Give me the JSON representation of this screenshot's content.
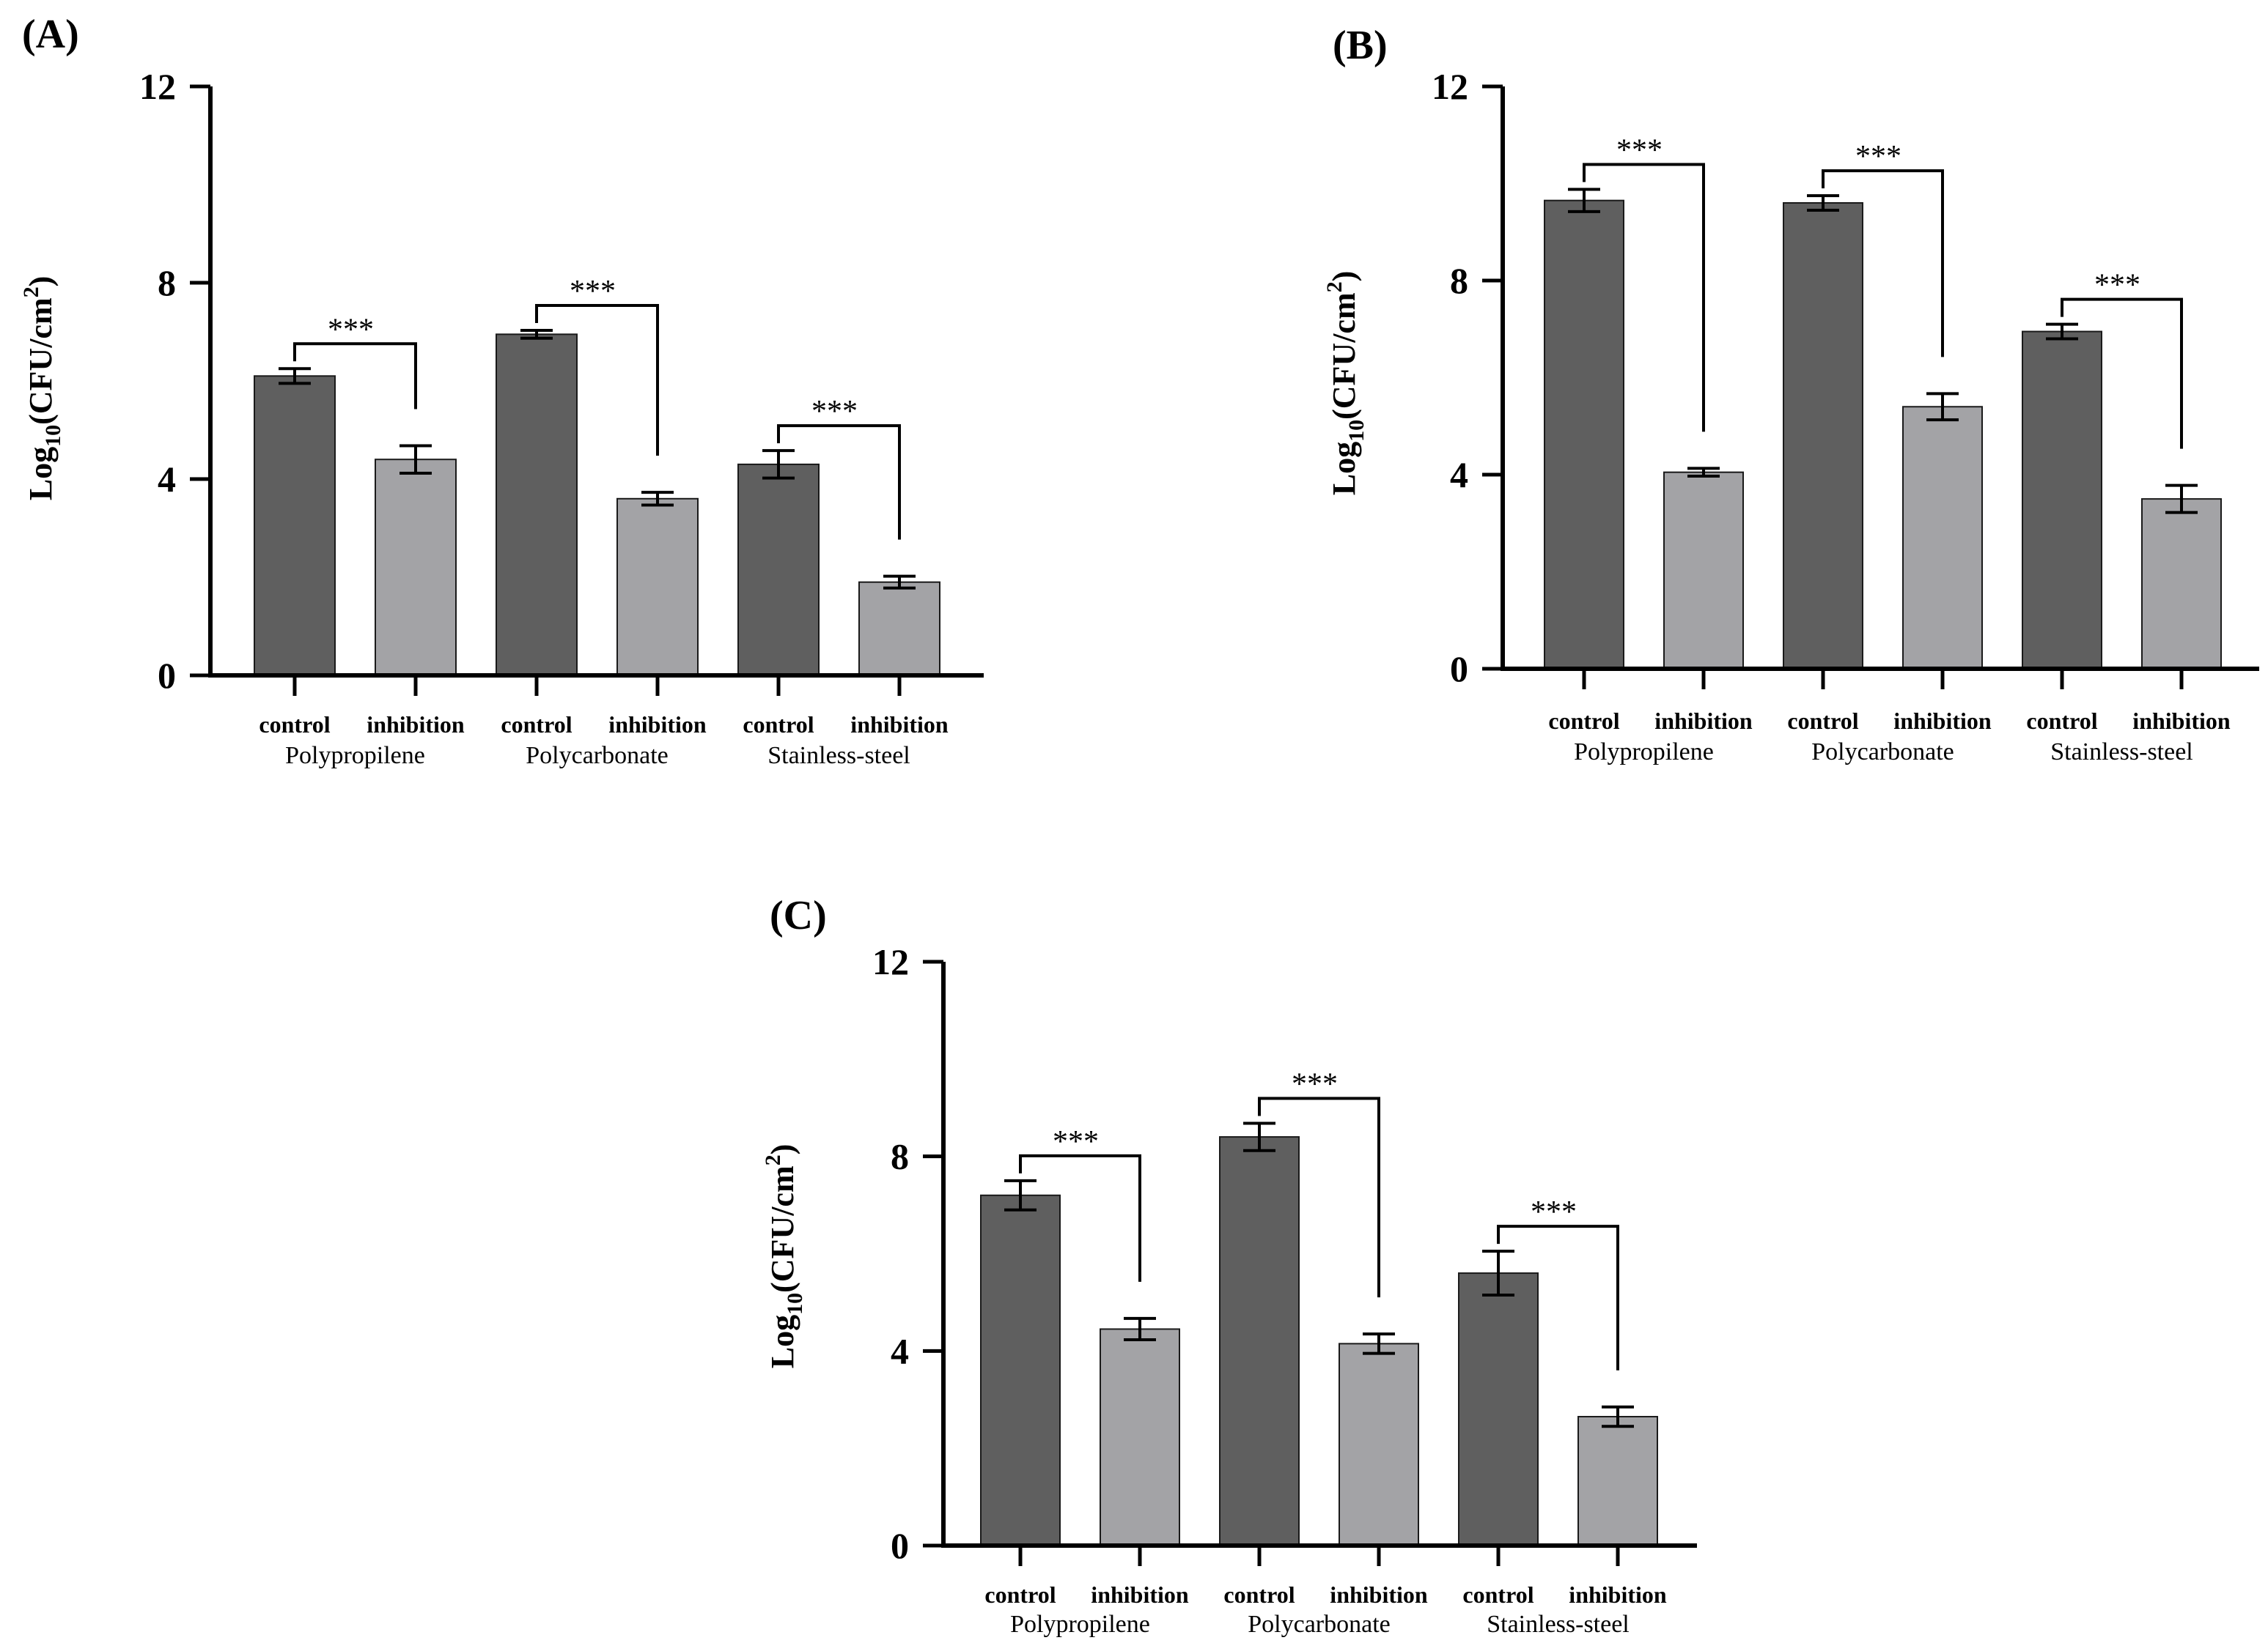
{
  "chart_data": [
    {
      "type": "bar",
      "panel": "(A)",
      "ylabel": {
        "prefix": "Log",
        "sub": "10",
        "mid": "(CFU/cm",
        "sup": "2",
        "suffix": ")"
      },
      "ylim": [
        0,
        12
      ],
      "yticks": [
        "0",
        "4",
        "8",
        "12"
      ],
      "groups": [
        "Polypropilene",
        "Polycarbonate",
        "Stainless-steel"
      ],
      "categories": [
        "control",
        "inhibition",
        "control",
        "inhibition",
        "control",
        "inhibition"
      ],
      "values": [
        6.1,
        4.4,
        6.95,
        3.6,
        4.3,
        1.9
      ],
      "errors": [
        0.15,
        0.28,
        0.08,
        0.13,
        0.28,
        0.12
      ],
      "significance": [
        "***",
        "***",
        "***"
      ]
    },
    {
      "type": "bar",
      "panel": "(B)",
      "ylabel": {
        "prefix": "Log",
        "sub": "10",
        "mid": "(CFU/cm",
        "sup": "2",
        "suffix": ")"
      },
      "ylim": [
        0,
        12
      ],
      "yticks": [
        "0",
        "4",
        "8",
        "12"
      ],
      "groups": [
        "Polypropilene",
        "Polycarbonate",
        "Stainless-steel"
      ],
      "categories": [
        "control",
        "inhibition",
        "control",
        "inhibition",
        "control",
        "inhibition"
      ],
      "values": [
        9.65,
        4.05,
        9.6,
        5.4,
        6.95,
        3.5
      ],
      "errors": [
        0.23,
        0.08,
        0.15,
        0.27,
        0.15,
        0.28
      ],
      "significance": [
        "***",
        "***",
        "***"
      ]
    },
    {
      "type": "bar",
      "panel": "(C)",
      "ylabel": {
        "prefix": "Log",
        "sub": "10",
        "mid": "(CFU/cm",
        "sup": "2",
        "suffix": ")"
      },
      "ylim": [
        0,
        12
      ],
      "yticks": [
        "0",
        "4",
        "8",
        "12"
      ],
      "groups": [
        "Polypropilene",
        "Polycarbonate",
        "Stainless-steel"
      ],
      "categories": [
        "control",
        "inhibition",
        "control",
        "inhibition",
        "control",
        "inhibition"
      ],
      "values": [
        7.2,
        4.45,
        8.4,
        4.15,
        5.6,
        2.65
      ],
      "errors": [
        0.3,
        0.22,
        0.28,
        0.2,
        0.45,
        0.2
      ],
      "significance": [
        "***",
        "***",
        "***"
      ]
    }
  ],
  "colors": {
    "control": "#5f5f5f",
    "inhibition": "#a3a3a6",
    "axis": "#000000"
  }
}
